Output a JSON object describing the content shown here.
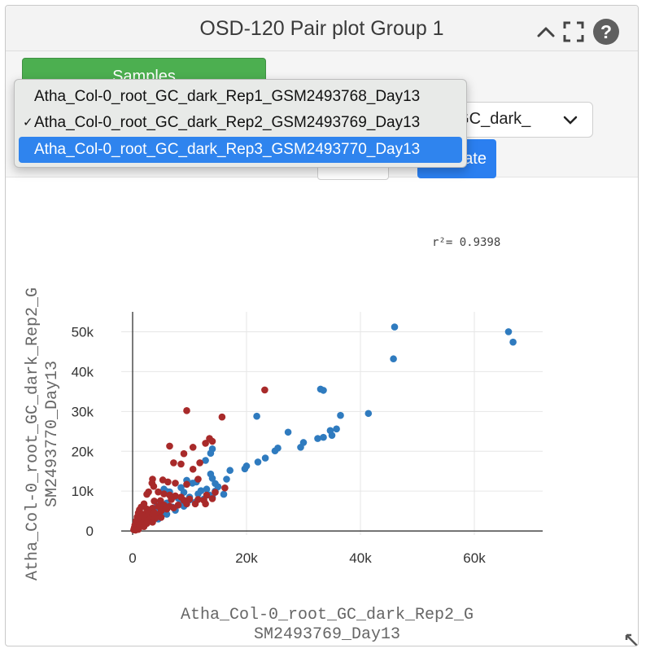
{
  "header": {
    "title": "OSD-120 Pair plot Group 1"
  },
  "controls": {
    "samples_label": "Samples",
    "select_value": "_GC_dark_",
    "update_label": "ate"
  },
  "dropdown": {
    "options": [
      {
        "label": "Atha_Col-0_root_GC_dark_Rep1_GSM2493768_Day13",
        "check": ""
      },
      {
        "label": "Atha_Col-0_root_GC_dark_Rep2_GSM2493769_Day13",
        "check": "✓"
      },
      {
        "label": "Atha_Col-0_root_GC_dark_Rep3_GSM2493770_Day13",
        "check": ""
      }
    ]
  },
  "annotation": {
    "r2_text": "r²= 0.9398"
  },
  "colors": {
    "blue_series": "#2f7bbf",
    "red_series": "#a82a2a"
  },
  "chart_data": {
    "type": "scatter",
    "xlabel_lines": [
      "Atha_Col-0_root_GC_dark_Rep2_G",
      "SM2493769_Day13"
    ],
    "ylabel_lines": [
      "Atha_Col-0_root_GC_dark_Rep2_G",
      "SM2493770_Day13"
    ],
    "xlim": [
      -2000,
      72000
    ],
    "ylim": [
      -1000,
      55000
    ],
    "xticks": [
      "0",
      "20k",
      "40k",
      "60k"
    ],
    "xtick_values": [
      0,
      20000,
      40000,
      60000
    ],
    "yticks": [
      "0",
      "10k",
      "20k",
      "30k",
      "40k",
      "50k"
    ],
    "ytick_values": [
      0,
      10000,
      20000,
      30000,
      40000,
      50000
    ],
    "series": [
      {
        "color": "#2f7bbf",
        "points": [
          [
            46000,
            51200
          ],
          [
            66000,
            50000
          ],
          [
            66800,
            47400
          ],
          [
            45800,
            43200
          ],
          [
            33000,
            35600
          ],
          [
            33500,
            35300
          ],
          [
            41400,
            29500
          ],
          [
            36500,
            29000
          ],
          [
            21800,
            28800
          ],
          [
            27300,
            24800
          ],
          [
            32500,
            23200
          ],
          [
            33500,
            23500
          ],
          [
            35000,
            24000
          ],
          [
            35800,
            25600
          ],
          [
            34700,
            25200
          ],
          [
            30000,
            22200
          ],
          [
            29500,
            21000
          ],
          [
            25500,
            20800
          ],
          [
            25000,
            20100
          ],
          [
            23300,
            18300
          ],
          [
            22000,
            17300
          ],
          [
            20000,
            16300
          ],
          [
            19700,
            15600
          ],
          [
            16500,
            13000
          ],
          [
            17100,
            15200
          ],
          [
            14000,
            13200
          ],
          [
            14500,
            11900
          ],
          [
            14500,
            10000
          ],
          [
            15000,
            11100
          ],
          [
            13700,
            14300
          ],
          [
            14000,
            20600
          ],
          [
            13700,
            19500
          ],
          [
            12800,
            17700
          ],
          [
            11200,
            12300
          ],
          [
            9500,
            12700
          ],
          [
            10500,
            12000
          ],
          [
            8500,
            10900
          ],
          [
            9000,
            9700
          ],
          [
            11500,
            9300
          ],
          [
            12000,
            10100
          ],
          [
            13000,
            10500
          ],
          [
            13500,
            9000
          ],
          [
            10000,
            8500
          ],
          [
            8000,
            8200
          ],
          [
            7000,
            8500
          ],
          [
            6500,
            9800
          ],
          [
            6000,
            9900
          ],
          [
            5500,
            10500
          ],
          [
            4300,
            6300
          ],
          [
            6000,
            7000
          ],
          [
            5000,
            5900
          ],
          [
            4000,
            5000
          ],
          [
            3000,
            4500
          ],
          [
            2000,
            3500
          ],
          [
            1500,
            2400
          ],
          [
            1000,
            1800
          ],
          [
            800,
            1200
          ],
          [
            500,
            700
          ],
          [
            300,
            400
          ],
          [
            3500,
            2400
          ],
          [
            4500,
            3000
          ],
          [
            6000,
            4200
          ],
          [
            7500,
            5200
          ],
          [
            9000,
            6200
          ],
          [
            11000,
            7200
          ],
          [
            12500,
            8000
          ],
          [
            14000,
            8500
          ],
          [
            16000,
            9200
          ],
          [
            10000,
            7800
          ],
          [
            8500,
            7000
          ],
          [
            7000,
            6000
          ],
          [
            5500,
            5200
          ],
          [
            4800,
            4000
          ],
          [
            2500,
            2000
          ],
          [
            2200,
            3000
          ],
          [
            3800,
            3800
          ],
          [
            5200,
            4800
          ]
        ]
      },
      {
        "color": "#a82a2a",
        "points": [
          [
            23200,
            35400
          ],
          [
            9500,
            30200
          ],
          [
            15700,
            28600
          ],
          [
            13500,
            23200
          ],
          [
            14000,
            22500
          ],
          [
            12800,
            22000
          ],
          [
            6500,
            21300
          ],
          [
            10600,
            21000
          ],
          [
            9000,
            19400
          ],
          [
            8500,
            16800
          ],
          [
            7200,
            17100
          ],
          [
            11800,
            17100
          ],
          [
            10600,
            15500
          ],
          [
            3500,
            13000
          ],
          [
            3400,
            12000
          ],
          [
            5300,
            12800
          ],
          [
            6200,
            12300
          ],
          [
            7500,
            12000
          ],
          [
            9500,
            11700
          ],
          [
            11500,
            13000
          ],
          [
            3700,
            11200
          ],
          [
            2800,
            9800
          ],
          [
            2500,
            9200
          ],
          [
            4500,
            9800
          ],
          [
            5500,
            9300
          ],
          [
            6500,
            9000
          ],
          [
            7500,
            8800
          ],
          [
            8500,
            8500
          ],
          [
            10000,
            8000
          ],
          [
            11500,
            7900
          ],
          [
            12500,
            7700
          ],
          [
            14000,
            8100
          ],
          [
            16200,
            10800
          ],
          [
            14500,
            9700
          ],
          [
            13000,
            9000
          ],
          [
            9000,
            7700
          ],
          [
            6800,
            7900
          ],
          [
            4900,
            7600
          ],
          [
            3800,
            7500
          ],
          [
            2000,
            6800
          ],
          [
            1500,
            6000
          ],
          [
            1200,
            5300
          ],
          [
            2500,
            5500
          ],
          [
            3500,
            5700
          ],
          [
            4500,
            6200
          ],
          [
            5500,
            6500
          ],
          [
            6500,
            6200
          ],
          [
            8000,
            6500
          ],
          [
            9500,
            6800
          ],
          [
            11000,
            6800
          ],
          [
            12800,
            6800
          ],
          [
            1000,
            4500
          ],
          [
            1800,
            4200
          ],
          [
            2800,
            4800
          ],
          [
            3800,
            4600
          ],
          [
            5000,
            5000
          ],
          [
            6000,
            5500
          ],
          [
            7200,
            5800
          ],
          [
            800,
            3500
          ],
          [
            1500,
            3200
          ],
          [
            2500,
            3600
          ],
          [
            3500,
            3800
          ],
          [
            4500,
            4000
          ],
          [
            600,
            2500
          ],
          [
            1200,
            2300
          ],
          [
            2000,
            2600
          ],
          [
            3000,
            2900
          ],
          [
            4000,
            3200
          ],
          [
            5000,
            3400
          ],
          [
            400,
            1500
          ],
          [
            900,
            1400
          ],
          [
            1500,
            1700
          ],
          [
            2500,
            1900
          ],
          [
            3500,
            2200
          ],
          [
            300,
            800
          ],
          [
            700,
            700
          ],
          [
            1200,
            900
          ],
          [
            2000,
            1100
          ],
          [
            200,
            300
          ],
          [
            500,
            200
          ],
          [
            1000,
            400
          ]
        ]
      }
    ]
  }
}
